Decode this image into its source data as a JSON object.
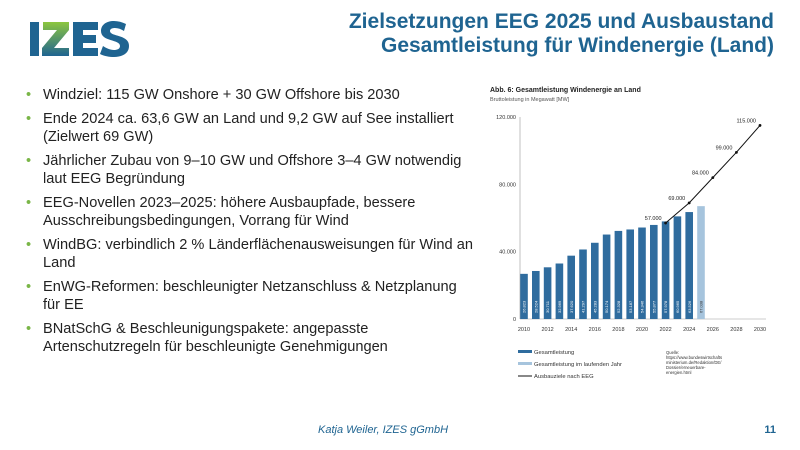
{
  "logo": {
    "text": "IZES",
    "colors": {
      "blue": "#1f6491",
      "green": "#7ab648"
    }
  },
  "title": {
    "line1": "Zielsetzungen EEG 2025 und Ausbaustand",
    "line2": "Gesamtleistung für Windenergie (Land)"
  },
  "bullets": [
    "Windziel: 115 GW Onshore + 30 GW Offshore bis 2030",
    "Ende 2024 ca. 63,6 GW an Land und 9,2 GW auf See installiert (Zielwert 69 GW)",
    "Jährlicher Zubau von 9–10 GW und Offshore 3–4 GW notwendig laut EEG Begründung",
    "EEG-Novellen 2023–2025: höhere Ausbaupfade, bessere Ausschreibungsbedingungen, Vorrang für Wind",
    "WindBG: verbindlich 2 % Länderflächenausweisungen für Wind an Land",
    "EnWG-Reformen: beschleunigter Netzanschluss & Netzplanung für EE",
    "BNatSchG & Beschleunigungspakete: angepasste Artenschutzregeln für beschleunigte Genehmigungen"
  ],
  "chart_data": {
    "type": "bar",
    "title": "Abb. 6: Gesamtleistung Windenergie an Land",
    "subtitle": "Bruttoleistung in Megawatt [MW]",
    "ylim": [
      0,
      120000
    ],
    "yticks": [
      "0",
      "40.000",
      "80.000",
      "120.000"
    ],
    "xticks": [
      "2010",
      "2012",
      "2014",
      "2016",
      "2018",
      "2020",
      "2022",
      "2024",
      "2026",
      "2028",
      "2030"
    ],
    "categories": [
      2010,
      2011,
      2012,
      2013,
      2014,
      2015,
      2016,
      2017,
      2018,
      2019,
      2020,
      2021,
      2022,
      2023,
      2024,
      2025
    ],
    "series": [
      {
        "name": "Gesamtleistung",
        "color": "#2f6c9e",
        "values": [
          26823,
          28524,
          30711,
          32969,
          37620,
          41297,
          45283,
          50174,
          52328,
          53187,
          54346,
          55877,
          57978,
          60965,
          63526,
          null
        ],
        "labels": [
          "26.823",
          "28.524",
          "30.711",
          "32.969",
          "37.620",
          "41.297",
          "45.283",
          "50.174",
          "52.328",
          "53.187",
          "54.346",
          "55.877",
          "57.978",
          "60.965",
          "63.526",
          ""
        ]
      },
      {
        "name": "Gesamtleistung im laufenden Jahr",
        "color": "#a6c4dd",
        "values": [
          null,
          null,
          null,
          null,
          null,
          null,
          null,
          null,
          null,
          null,
          null,
          null,
          null,
          null,
          null,
          67038
        ],
        "labels": [
          "",
          "",
          "",
          "",
          "",
          "",
          "",
          "",
          "",
          "",
          "",
          "",
          "",
          "",
          "",
          "67.038"
        ]
      },
      {
        "name": "Ausbauziele nach EEG",
        "type": "line",
        "color": "#111111",
        "x": [
          2022,
          2024,
          2026,
          2028,
          2030
        ],
        "values": [
          57000,
          69000,
          84000,
          99000,
          115000
        ],
        "labels": [
          "57.000",
          "69.000",
          "84.000",
          "99.000",
          "115.000"
        ]
      }
    ],
    "legend": "bottom-left",
    "source": "Quelle: https://www.bundeswirtschaftsministerium.de/Redaktion/DE/Dossier/erneuerbare-energien.html"
  },
  "footer": {
    "author": "Katja Weiler, IZES gGmbH",
    "page": "11"
  }
}
